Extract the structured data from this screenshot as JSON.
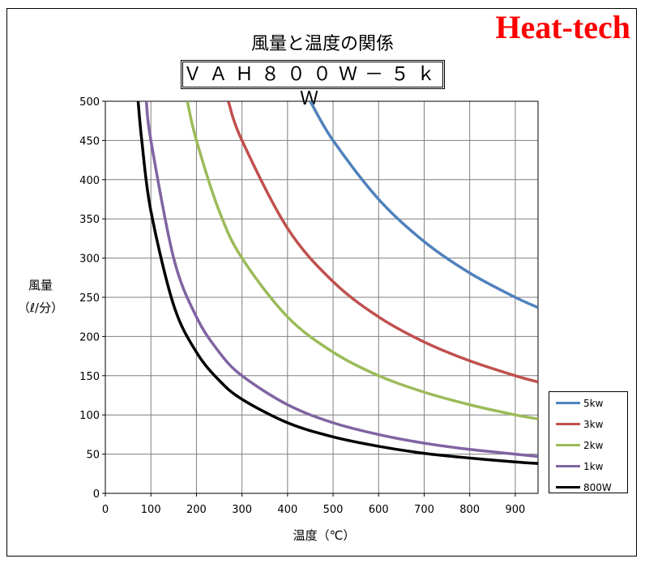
{
  "brand": "Heat-tech",
  "title": "風量と温度の関係",
  "model": "ＶＡＨ８００Ｗ－５ｋＷ",
  "chart_data": {
    "type": "line",
    "title": "風量と温度の関係",
    "subtitle": "ＶＡＨ８００Ｗ－５ｋＷ",
    "xlabel": "温度（℃）",
    "ylabel_line1": "風量",
    "ylabel_line2": "（ℓ/分）",
    "xlim": [
      0,
      950
    ],
    "ylim": [
      0,
      500
    ],
    "x_ticks": [
      "0",
      "100",
      "200",
      "300",
      "400",
      "500",
      "600",
      "700",
      "800",
      "900"
    ],
    "y_ticks": [
      "0",
      "50",
      "100",
      "150",
      "200",
      "250",
      "300",
      "350",
      "400",
      "450",
      "500"
    ],
    "grid": true,
    "legend_position": "bottom-right",
    "series": [
      {
        "name": "5kw",
        "color": "#4f81bd",
        "x": [
          450,
          500,
          600,
          700,
          800,
          900,
          950
        ],
        "y": [
          500,
          450,
          375,
          321,
          281,
          250,
          237
        ]
      },
      {
        "name": "3kw",
        "color": "#c0504d",
        "x": [
          270,
          300,
          400,
          500,
          600,
          700,
          800,
          900,
          950
        ],
        "y": [
          500,
          450,
          338,
          270,
          225,
          193,
          169,
          150,
          142
        ]
      },
      {
        "name": "2kw",
        "color": "#9bbb59",
        "x": [
          180,
          200,
          250,
          300,
          400,
          500,
          600,
          700,
          800,
          900,
          950
        ],
        "y": [
          500,
          450,
          360,
          300,
          225,
          180,
          150,
          129,
          113,
          100,
          95
        ]
      },
      {
        "name": "1kw",
        "color": "#8064a2",
        "x": [
          90,
          100,
          150,
          200,
          250,
          300,
          400,
          500,
          600,
          700,
          800,
          900,
          950
        ],
        "y": [
          500,
          450,
          300,
          225,
          180,
          150,
          113,
          90,
          75,
          64,
          56,
          50,
          47
        ]
      },
      {
        "name": "800W",
        "color": "#000000",
        "x": [
          72,
          80,
          100,
          150,
          200,
          250,
          300,
          400,
          500,
          600,
          700,
          800,
          900,
          950
        ],
        "y": [
          500,
          450,
          360,
          240,
          180,
          144,
          120,
          90,
          72,
          60,
          51,
          45,
          40,
          38
        ]
      }
    ]
  }
}
